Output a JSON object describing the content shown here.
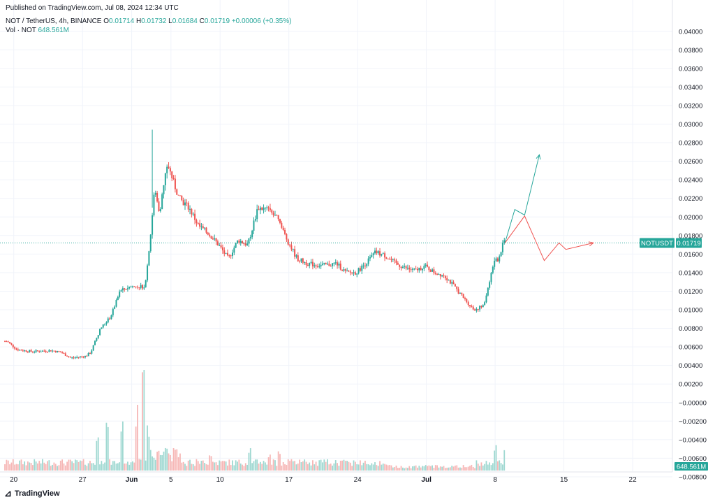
{
  "published": "Published on TradingView.com, Jul 08, 2024 12:34 UTC",
  "symbol_line": {
    "title": "NOT / TetherUS, 4h, BINANCE",
    "o_label": "O",
    "o": "0.01714",
    "h_label": "H",
    "h": "0.01732",
    "l_label": "L",
    "l": "0.01684",
    "c_label": "C",
    "c": "0.01719",
    "change": "+0.00006 (+0.35%)"
  },
  "volume_line": {
    "label": "Vol · NOT",
    "value": "648.561M"
  },
  "footer": {
    "brand": "TradingView"
  },
  "colors": {
    "up": "#26a69a",
    "down": "#ef5350",
    "grid": "#f0f3fa",
    "axis_text": "#131722"
  },
  "chart_data": {
    "type": "candlestick",
    "symbol": "NOTUSDT",
    "last_price": "0.01719",
    "last_volume": "648.561M",
    "y_ticks": [
      "0.04000",
      "0.03800",
      "0.03600",
      "0.03400",
      "0.03200",
      "0.03000",
      "0.02800",
      "0.02600",
      "0.02400",
      "0.02200",
      "0.02000",
      "0.01800",
      "0.01600",
      "0.01400",
      "0.01200",
      "0.01000",
      "0.00800",
      "0.00600",
      "0.00400",
      "0.00200",
      "−0.00000",
      "−0.00200",
      "−0.00400",
      "−0.00600",
      "−0.00800"
    ],
    "y_tick_values": [
      0.04,
      0.038,
      0.036,
      0.034,
      0.032,
      0.03,
      0.028,
      0.026,
      0.024,
      0.022,
      0.02,
      0.018,
      0.016,
      0.014,
      0.012,
      0.01,
      0.008,
      0.006,
      0.004,
      0.002,
      0,
      -0.002,
      -0.004,
      -0.006,
      -0.008
    ],
    "x_ticks": [
      {
        "label": "20",
        "day": 0
      },
      {
        "label": "27",
        "day": 7
      },
      {
        "label": "Jun",
        "day": 12
      },
      {
        "label": "5",
        "day": 16
      },
      {
        "label": "10",
        "day": 21
      },
      {
        "label": "17",
        "day": 28
      },
      {
        "label": "24",
        "day": 35
      },
      {
        "label": "Jul",
        "day": 42
      },
      {
        "label": "8",
        "day": 49
      },
      {
        "label": "15",
        "day": 56
      },
      {
        "label": "22",
        "day": 63
      }
    ],
    "price_path": [
      [
        -0.5,
        0.0066
      ],
      [
        0.5,
        0.0057
      ],
      [
        2,
        0.0055
      ],
      [
        4,
        0.0056
      ],
      [
        5,
        0.0054
      ],
      [
        6,
        0.0048
      ],
      [
        7.5,
        0.005
      ],
      [
        8,
        0.0054
      ],
      [
        9,
        0.008
      ],
      [
        10,
        0.0092
      ],
      [
        11,
        0.012
      ],
      [
        12,
        0.0125
      ],
      [
        13.5,
        0.0125
      ],
      [
        14,
        0.017
      ],
      [
        14.5,
        0.023
      ],
      [
        15,
        0.0205
      ],
      [
        15.8,
        0.0258
      ],
      [
        16.5,
        0.0235
      ],
      [
        17,
        0.022
      ],
      [
        18,
        0.021
      ],
      [
        19,
        0.019
      ],
      [
        20,
        0.0182
      ],
      [
        21,
        0.017
      ],
      [
        22,
        0.0155
      ],
      [
        23,
        0.0175
      ],
      [
        24,
        0.017
      ],
      [
        25,
        0.021
      ],
      [
        26,
        0.0208
      ],
      [
        27,
        0.0198
      ],
      [
        28,
        0.0175
      ],
      [
        29,
        0.0155
      ],
      [
        30,
        0.015
      ],
      [
        31,
        0.0148
      ],
      [
        32,
        0.0148
      ],
      [
        33,
        0.015
      ],
      [
        34,
        0.014
      ],
      [
        35,
        0.014
      ],
      [
        36,
        0.015
      ],
      [
        37,
        0.0162
      ],
      [
        38,
        0.0158
      ],
      [
        39,
        0.015
      ],
      [
        40,
        0.0145
      ],
      [
        41,
        0.0142
      ],
      [
        42,
        0.0147
      ],
      [
        43,
        0.014
      ],
      [
        44,
        0.0137
      ],
      [
        45,
        0.0125
      ],
      [
        46,
        0.0112
      ],
      [
        47,
        0.01
      ],
      [
        48,
        0.0104
      ],
      [
        49,
        0.015
      ],
      [
        49.5,
        0.0155
      ],
      [
        50,
        0.0172
      ]
    ],
    "projections": [
      {
        "name": "bullish",
        "color": "#26a69a",
        "points": [
          [
            50,
            0.0172
          ],
          [
            51,
            0.0208
          ],
          [
            52,
            0.0202
          ],
          [
            53.5,
            0.0267
          ]
        ]
      },
      {
        "name": "bearish",
        "color": "#ef5350",
        "points": [
          [
            50,
            0.0172
          ],
          [
            52,
            0.0201
          ],
          [
            54,
            0.0153
          ],
          [
            55.5,
            0.0172
          ],
          [
            56.2,
            0.0165
          ],
          [
            59,
            0.0172
          ]
        ]
      }
    ],
    "volume_spikes": [
      {
        "day": 8.5,
        "value": 0.35
      },
      {
        "day": 9.5,
        "value": 0.55
      },
      {
        "day": 11,
        "value": 0.45
      },
      {
        "day": 12.5,
        "value": 0.6
      },
      {
        "day": 13.2,
        "value": 1.0
      },
      {
        "day": 13.7,
        "value": 0.4
      },
      {
        "day": 15.5,
        "value": 0.2
      },
      {
        "day": 20,
        "value": 0.15
      },
      {
        "day": 24,
        "value": 0.2
      },
      {
        "day": 26,
        "value": 0.18
      },
      {
        "day": 27,
        "value": 0.17
      },
      {
        "day": 49,
        "value": 0.26
      },
      {
        "day": 50,
        "value": 0.23
      }
    ],
    "grid": true
  }
}
